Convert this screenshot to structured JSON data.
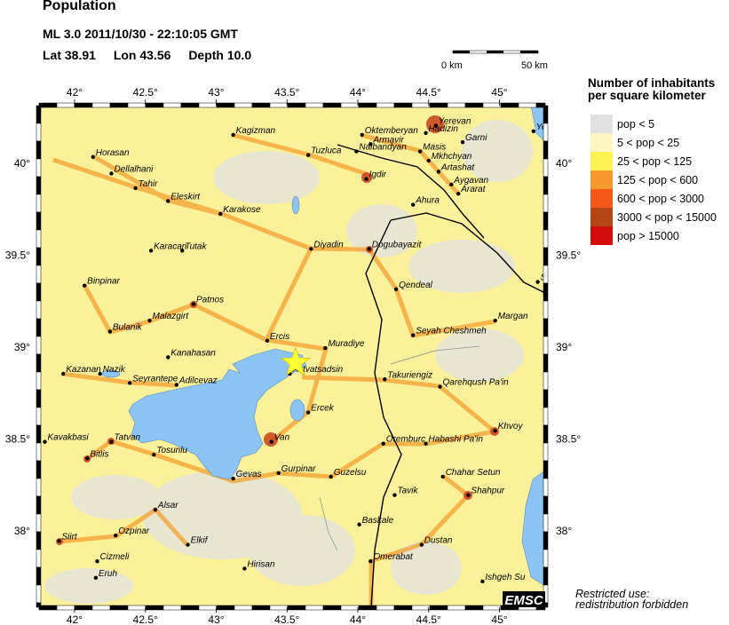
{
  "header": {
    "title": "Population",
    "event_line": "ML 3.0  2011/10/30 - 22:10:05 GMT",
    "lat": "Lat 38.91",
    "lon": "Lon  43.56",
    "depth": "Depth  10.0"
  },
  "scale_bar": {
    "start_label": "0 km",
    "end_label": "50 km"
  },
  "legend": {
    "title_line1": "Number of inhabitants",
    "title_line2": "per square kilometer",
    "items": [
      {
        "label": "pop < 5",
        "color": "#e1e1e1"
      },
      {
        "label": "5 < pop < 25",
        "color": "#fbf6c2"
      },
      {
        "label": "25 < pop < 125",
        "color": "#fbf351"
      },
      {
        "label": "125 < pop < 600",
        "color": "#f89a2e"
      },
      {
        "label": "600 < pop < 3000",
        "color": "#f5581a"
      },
      {
        "label": "3000 < pop < 15000",
        "color": "#b44615"
      },
      {
        "label": "pop > 15000",
        "color": "#d40c0c"
      }
    ]
  },
  "map": {
    "lon_ticks": [
      "42°",
      "42.5°",
      "43°",
      "43.5°",
      "44°",
      "44.5°",
      "45°"
    ],
    "lat_ticks_right": [
      "40°",
      "39.5°",
      "39°",
      "38.5°",
      "38°"
    ],
    "lat_ticks_left": [
      "40°",
      "39.5°",
      "39°",
      "38.5°",
      "38°"
    ],
    "epicenter": {
      "lon": 43.56,
      "lat": 38.91,
      "color": "#ffff33",
      "icon": "star-icon"
    },
    "water_color": "#8cc4f5",
    "cities": [
      {
        "name": "Kagizman",
        "lon": 43.12,
        "lat": 40.15
      },
      {
        "name": "Horasan",
        "lon": 42.13,
        "lat": 40.03
      },
      {
        "name": "Dellalhani",
        "lon": 42.26,
        "lat": 39.94
      },
      {
        "name": "Tahir",
        "lon": 42.43,
        "lat": 39.86
      },
      {
        "name": "Eleskirt",
        "lon": 42.66,
        "lat": 39.79
      },
      {
        "name": "Karakose",
        "lon": 43.03,
        "lat": 39.72
      },
      {
        "name": "Tuzluca",
        "lon": 43.65,
        "lat": 40.04
      },
      {
        "name": "Oktemberyan",
        "lon": 44.03,
        "lat": 40.15
      },
      {
        "name": "Armavir",
        "lon": 44.09,
        "lat": 40.1
      },
      {
        "name": "Hadizin",
        "lon": 44.48,
        "lat": 40.16
      },
      {
        "name": "Nalbandyan",
        "lon": 43.99,
        "lat": 40.06
      },
      {
        "name": "Yerevan",
        "lon": 44.55,
        "lat": 40.2
      },
      {
        "name": "Garni",
        "lon": 44.74,
        "lat": 40.11
      },
      {
        "name": "Masis",
        "lon": 44.44,
        "lat": 40.06
      },
      {
        "name": "Mkhchyan",
        "lon": 44.5,
        "lat": 40.01
      },
      {
        "name": "Artashat",
        "lon": 44.57,
        "lat": 39.95
      },
      {
        "name": "Aygavan",
        "lon": 44.66,
        "lat": 39.88
      },
      {
        "name": "Ararat",
        "lon": 44.71,
        "lat": 39.83
      },
      {
        "name": "Yer",
        "lon": 45.24,
        "lat": 40.17
      },
      {
        "name": "Igdir",
        "lon": 44.06,
        "lat": 39.91
      },
      {
        "name": "Ahura",
        "lon": 44.39,
        "lat": 39.77
      },
      {
        "name": "Karacan",
        "lon": 42.54,
        "lat": 39.52
      },
      {
        "name": "Tutak",
        "lon": 42.76,
        "lat": 39.52
      },
      {
        "name": "Diyadin",
        "lon": 43.67,
        "lat": 39.53
      },
      {
        "name": "Dogubayazit",
        "lon": 44.08,
        "lat": 39.53
      },
      {
        "name": "Qendeal",
        "lon": 44.27,
        "lat": 39.31
      },
      {
        "name": "Shakhi",
        "lon": 45.27,
        "lat": 39.35
      },
      {
        "name": "Binpinar",
        "lon": 42.07,
        "lat": 39.33
      },
      {
        "name": "Patnos",
        "lon": 42.84,
        "lat": 39.23
      },
      {
        "name": "Margan",
        "lon": 44.97,
        "lat": 39.14
      },
      {
        "name": "Malazgirt",
        "lon": 42.53,
        "lat": 39.14
      },
      {
        "name": "Bulanik",
        "lon": 42.25,
        "lat": 39.08
      },
      {
        "name": "Seyah Cheshmeh",
        "lon": 44.39,
        "lat": 39.06
      },
      {
        "name": "Ercis",
        "lon": 43.36,
        "lat": 39.03
      },
      {
        "name": "Muradiye",
        "lon": 43.77,
        "lat": 38.99
      },
      {
        "name": "Kanahasan",
        "lon": 42.66,
        "lat": 38.94
      },
      {
        "name": "Kazanan",
        "lon": 41.92,
        "lat": 38.85
      },
      {
        "name": "Nazik",
        "lon": 42.18,
        "lat": 38.85
      },
      {
        "name": "Seyrantepe",
        "lon": 42.39,
        "lat": 38.8
      },
      {
        "name": "Adilcevaz",
        "lon": 42.72,
        "lat": 38.79
      },
      {
        "name": "Astvatsadsin",
        "lon": 43.52,
        "lat": 38.85
      },
      {
        "name": "Takuriengiz",
        "lon": 44.19,
        "lat": 38.82
      },
      {
        "name": "Qarehqush Pa'in",
        "lon": 44.58,
        "lat": 38.78
      },
      {
        "name": "Ercek",
        "lon": 43.65,
        "lat": 38.64
      },
      {
        "name": "Khvoy",
        "lon": 44.97,
        "lat": 38.54
      },
      {
        "name": "Kavakbasi",
        "lon": 41.79,
        "lat": 38.48
      },
      {
        "name": "Tatvan",
        "lon": 42.26,
        "lat": 38.48
      },
      {
        "name": "Van",
        "lon": 43.39,
        "lat": 38.48
      },
      {
        "name": "Oremburc",
        "lon": 44.18,
        "lat": 38.47
      },
      {
        "name": "Habashi Pa'in",
        "lon": 44.48,
        "lat": 38.47
      },
      {
        "name": "Bitlis",
        "lon": 42.09,
        "lat": 38.39
      },
      {
        "name": "Tosunlu",
        "lon": 42.56,
        "lat": 38.41
      },
      {
        "name": "Gurpinar",
        "lon": 43.44,
        "lat": 38.31
      },
      {
        "name": "Guzelsu",
        "lon": 43.81,
        "lat": 38.29
      },
      {
        "name": "Gevas",
        "lon": 43.12,
        "lat": 38.28
      },
      {
        "name": "Chahar Setun",
        "lon": 44.6,
        "lat": 38.29
      },
      {
        "name": "Tavik",
        "lon": 44.26,
        "lat": 38.19
      },
      {
        "name": "Shahpur",
        "lon": 44.78,
        "lat": 38.19
      },
      {
        "name": "Alsar",
        "lon": 42.57,
        "lat": 38.11
      },
      {
        "name": "Baskale",
        "lon": 44.01,
        "lat": 38.03
      },
      {
        "name": "Ozpinar",
        "lon": 42.29,
        "lat": 37.97
      },
      {
        "name": "Siirt",
        "lon": 41.89,
        "lat": 37.94
      },
      {
        "name": "Elkif",
        "lon": 42.8,
        "lat": 37.92
      },
      {
        "name": "Dustan",
        "lon": 44.45,
        "lat": 37.92
      },
      {
        "name": "Cizmeli",
        "lon": 42.16,
        "lat": 37.83
      },
      {
        "name": "Omerabat",
        "lon": 44.09,
        "lat": 37.83
      },
      {
        "name": "Hirisan",
        "lon": 43.2,
        "lat": 37.79
      },
      {
        "name": "Eruh",
        "lon": 42.15,
        "lat": 37.74
      },
      {
        "name": "Ishgeh Su",
        "lon": 44.88,
        "lat": 37.72
      }
    ]
  },
  "logo": "EMSC",
  "notice_line1": "Restricted use:",
  "notice_line2": "redistribution forbidden"
}
